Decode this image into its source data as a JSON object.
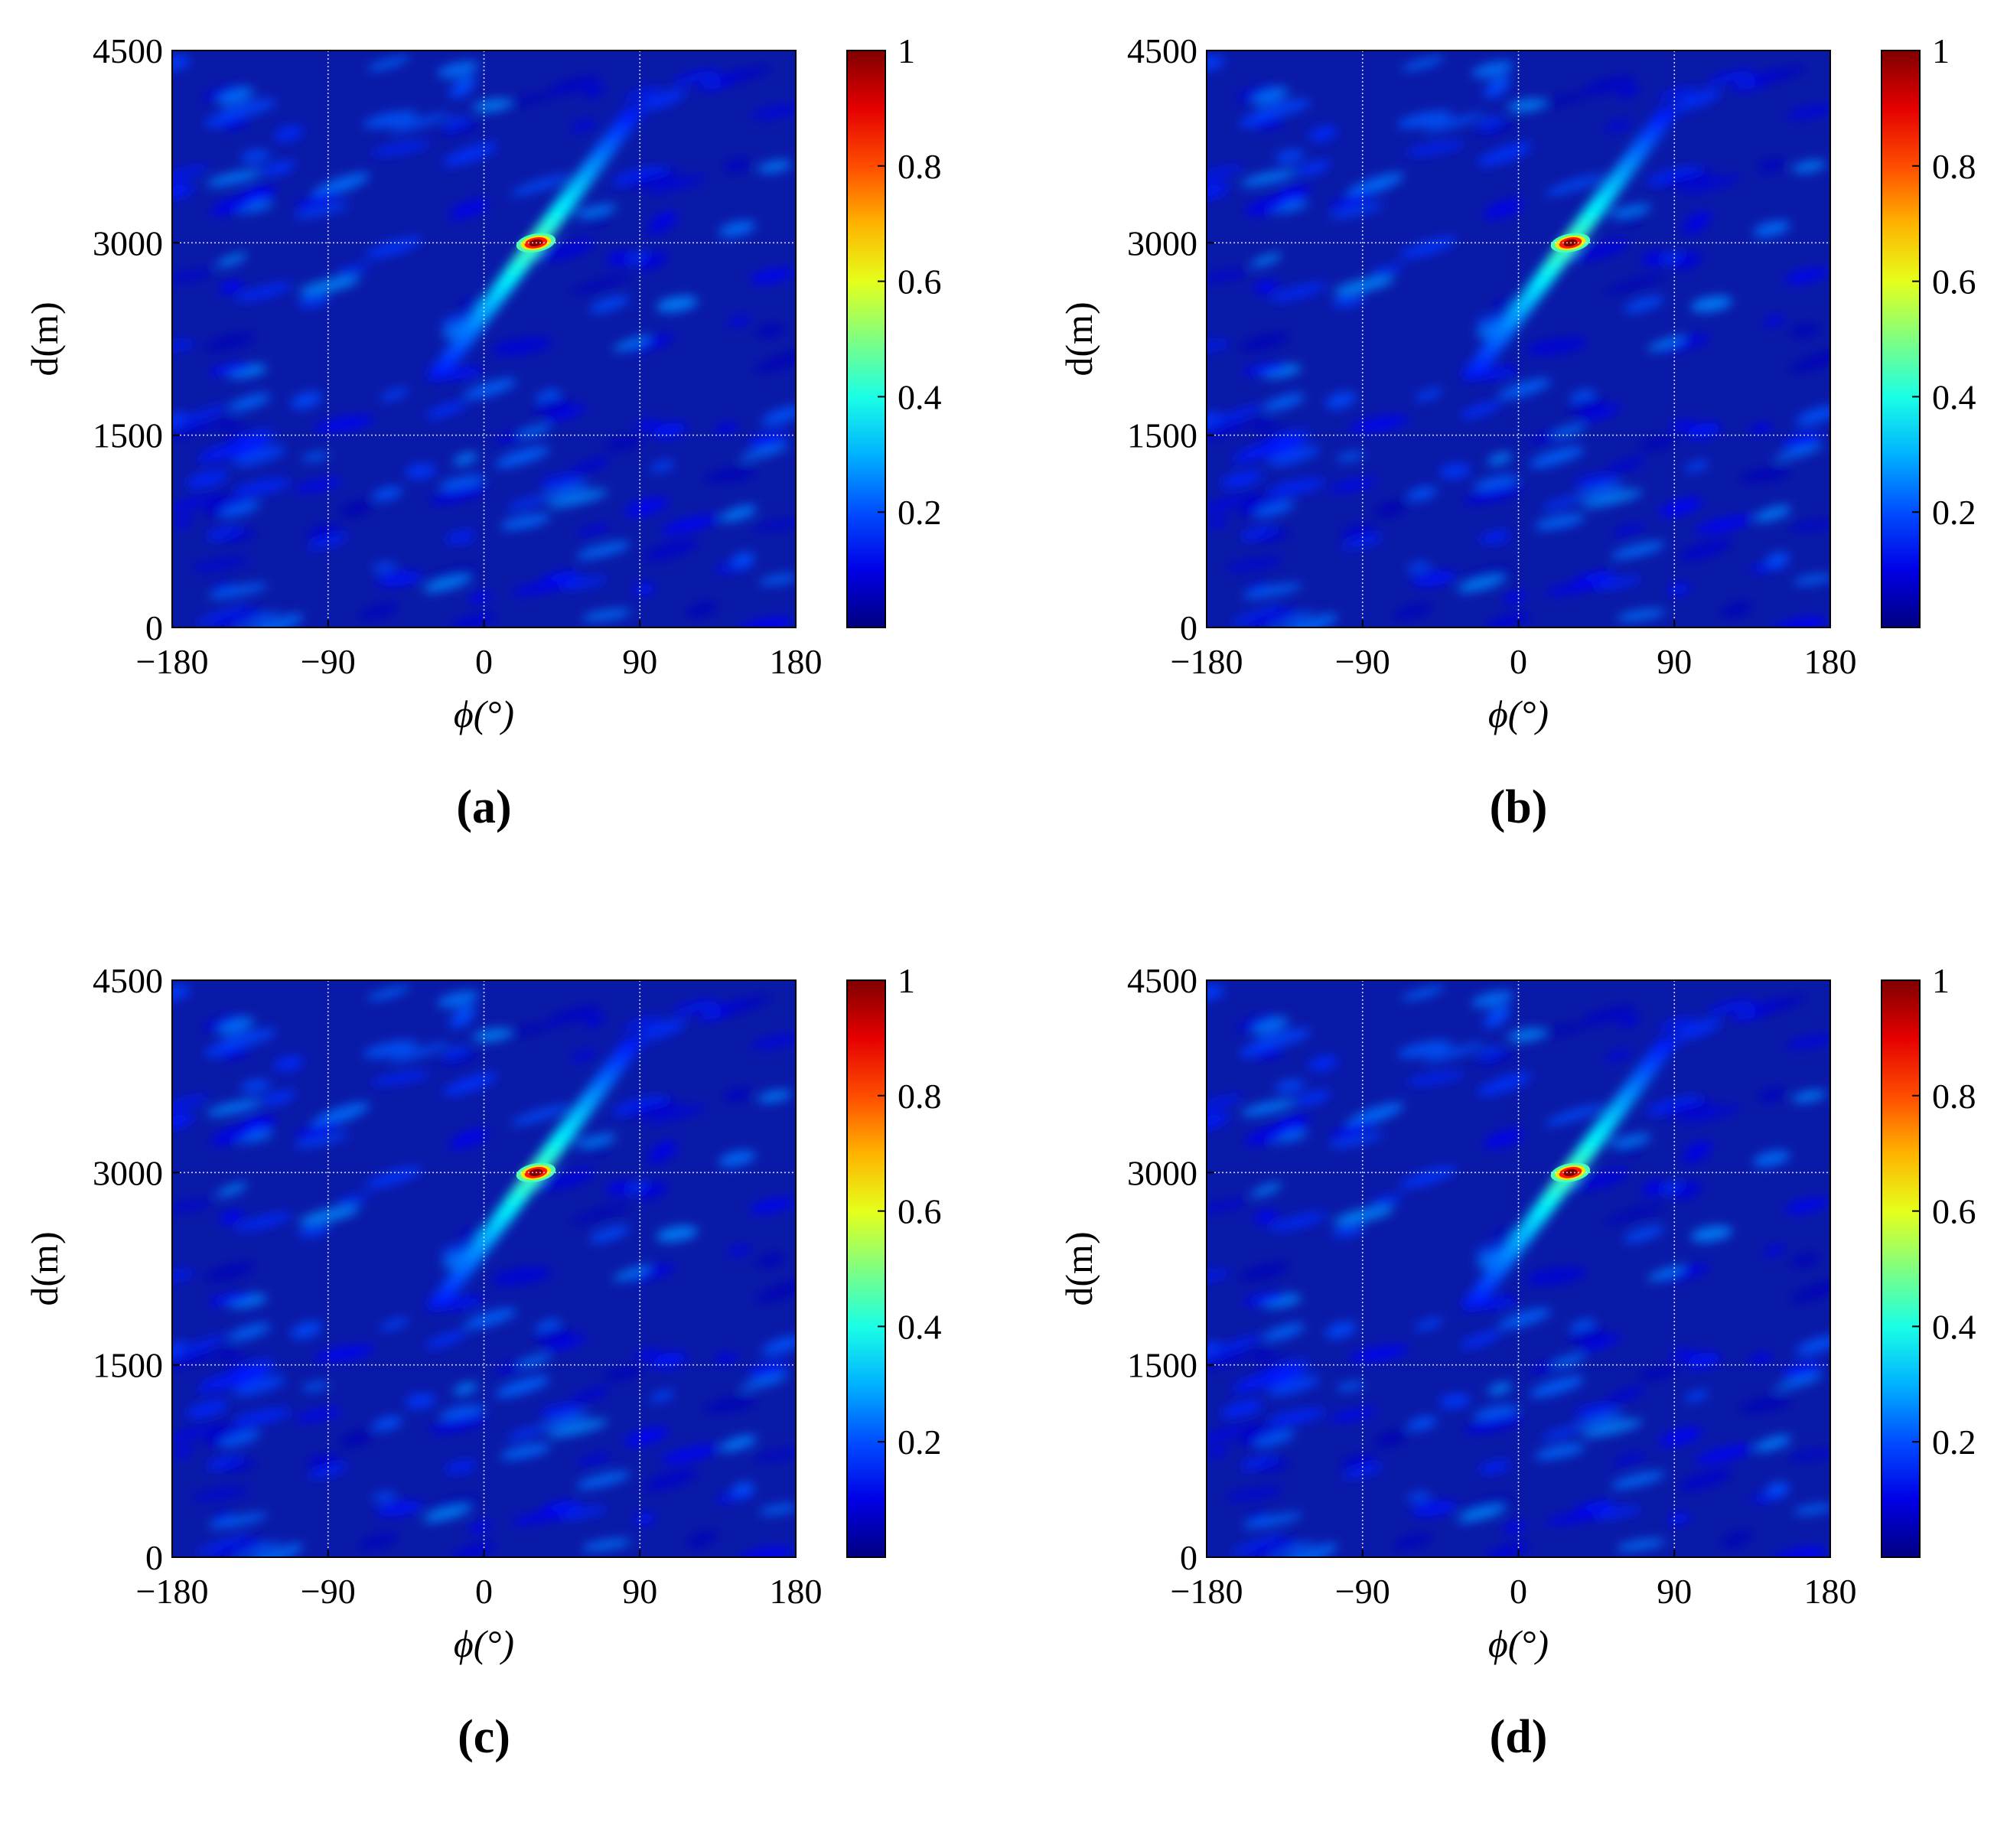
{
  "figure": {
    "panels": [
      {
        "label": "(a)"
      },
      {
        "label": "(b)"
      },
      {
        "label": "(c)"
      },
      {
        "label": "(d)"
      }
    ]
  },
  "chart_data": [
    {
      "type": "heatmap",
      "subplot_label": "(a)",
      "xlabel": "ϕ(°)",
      "ylabel": "d(m)",
      "xlim": [
        -180,
        180
      ],
      "ylim": [
        0,
        4500
      ],
      "xticks": [
        "−180",
        "−90",
        "0",
        "90",
        "180"
      ],
      "xtick_values": [
        -180,
        -90,
        0,
        90,
        180
      ],
      "yticks": [
        "0",
        "1500",
        "3000",
        "4500"
      ],
      "ytick_values": [
        0,
        1500,
        3000,
        4500
      ],
      "colorbar": {
        "range": [
          0,
          1
        ],
        "ticks": [
          "0.2",
          "0.4",
          "0.6",
          "0.8",
          "1"
        ],
        "tick_values": [
          0.2,
          0.4,
          0.6,
          0.8,
          1
        ],
        "colormap": "jet"
      },
      "grid": true,
      "peak": {
        "phi": 30,
        "d": 3000,
        "value": 1.0
      }
    },
    {
      "type": "heatmap",
      "subplot_label": "(b)",
      "xlabel": "ϕ(°)",
      "ylabel": "d(m)",
      "xlim": [
        -180,
        180
      ],
      "ylim": [
        0,
        4500
      ],
      "xticks": [
        "−180",
        "−90",
        "0",
        "90",
        "180"
      ],
      "xtick_values": [
        -180,
        -90,
        0,
        90,
        180
      ],
      "yticks": [
        "0",
        "1500",
        "3000",
        "4500"
      ],
      "ytick_values": [
        0,
        1500,
        3000,
        4500
      ],
      "colorbar": {
        "range": [
          0,
          1
        ],
        "ticks": [
          "0.2",
          "0.4",
          "0.6",
          "0.8",
          "1"
        ],
        "tick_values": [
          0.2,
          0.4,
          0.6,
          0.8,
          1
        ],
        "colormap": "jet"
      },
      "grid": true,
      "peak": {
        "phi": 30,
        "d": 3000,
        "value": 1.0
      }
    },
    {
      "type": "heatmap",
      "subplot_label": "(c)",
      "xlabel": "ϕ(°)",
      "ylabel": "d(m)",
      "xlim": [
        -180,
        180
      ],
      "ylim": [
        0,
        4500
      ],
      "xticks": [
        "−180",
        "−90",
        "0",
        "90",
        "180"
      ],
      "xtick_values": [
        -180,
        -90,
        0,
        90,
        180
      ],
      "yticks": [
        "0",
        "1500",
        "3000",
        "4500"
      ],
      "ytick_values": [
        0,
        1500,
        3000,
        4500
      ],
      "colorbar": {
        "range": [
          0,
          1
        ],
        "ticks": [
          "0.2",
          "0.4",
          "0.6",
          "0.8",
          "1"
        ],
        "tick_values": [
          0.2,
          0.4,
          0.6,
          0.8,
          1
        ],
        "colormap": "jet"
      },
      "grid": true,
      "peak": {
        "phi": 30,
        "d": 3000,
        "value": 1.0
      }
    },
    {
      "type": "heatmap",
      "subplot_label": "(d)",
      "xlabel": "ϕ(°)",
      "ylabel": "d(m)",
      "xlim": [
        -180,
        180
      ],
      "ylim": [
        0,
        4500
      ],
      "xticks": [
        "−180",
        "−90",
        "0",
        "90",
        "180"
      ],
      "xtick_values": [
        -180,
        -90,
        0,
        90,
        180
      ],
      "yticks": [
        "0",
        "1500",
        "3000",
        "4500"
      ],
      "ytick_values": [
        0,
        1500,
        3000,
        4500
      ],
      "colorbar": {
        "range": [
          0,
          1
        ],
        "ticks": [
          "0.2",
          "0.4",
          "0.6",
          "0.8",
          "1"
        ],
        "tick_values": [
          0.2,
          0.4,
          0.6,
          0.8,
          1
        ],
        "colormap": "jet"
      },
      "grid": true,
      "peak": {
        "phi": 30,
        "d": 3000,
        "value": 1.0
      }
    }
  ]
}
